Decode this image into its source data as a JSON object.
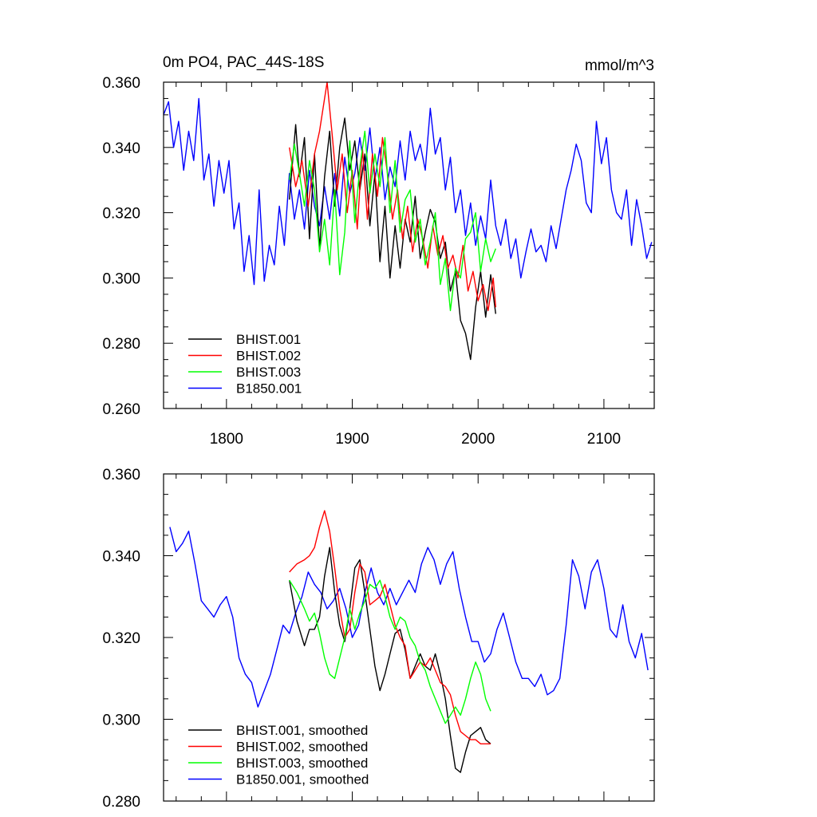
{
  "chart_data": [
    {
      "type": "line",
      "title_left": "0m PO4, PAC_44S-18S",
      "title_right": "mmol/m^3",
      "xlim": [
        1750,
        2140
      ],
      "ylim": [
        0.26,
        0.36
      ],
      "xticks": [
        1800,
        1900,
        2000,
        2100
      ],
      "xtick_labels": [
        "1800",
        "1900",
        "2000",
        "2100"
      ],
      "yticks": [
        0.26,
        0.28,
        0.3,
        0.32,
        0.34,
        0.36
      ],
      "ytick_labels": [
        "0.260",
        "0.280",
        "0.300",
        "0.320",
        "0.340",
        "0.360"
      ],
      "legend_position": "bottom-left",
      "series": [
        {
          "name": "BHIST.001",
          "color": "#000000",
          "x": [
            1850,
            1855,
            1858,
            1862,
            1866,
            1870,
            1874,
            1878,
            1882,
            1886,
            1890,
            1894,
            1898,
            1902,
            1906,
            1910,
            1914,
            1918,
            1922,
            1926,
            1930,
            1934,
            1938,
            1942,
            1946,
            1950,
            1954,
            1958,
            1962,
            1966,
            1970,
            1974,
            1978,
            1982,
            1986,
            1990,
            1994,
            1998,
            2002,
            2006,
            2010,
            2014
          ],
          "values": [
            0.324,
            0.347,
            0.331,
            0.343,
            0.312,
            0.338,
            0.309,
            0.331,
            0.345,
            0.322,
            0.34,
            0.349,
            0.333,
            0.342,
            0.327,
            0.338,
            0.316,
            0.332,
            0.305,
            0.322,
            0.3,
            0.316,
            0.303,
            0.318,
            0.311,
            0.325,
            0.306,
            0.314,
            0.321,
            0.317,
            0.306,
            0.311,
            0.296,
            0.302,
            0.287,
            0.283,
            0.275,
            0.291,
            0.302,
            0.288,
            0.301,
            0.289
          ]
        },
        {
          "name": "BHIST.002",
          "color": "#ff0000",
          "x": [
            1850,
            1855,
            1860,
            1865,
            1870,
            1874,
            1878,
            1880,
            1884,
            1888,
            1892,
            1896,
            1900,
            1904,
            1908,
            1912,
            1916,
            1920,
            1924,
            1928,
            1932,
            1936,
            1940,
            1944,
            1948,
            1952,
            1956,
            1960,
            1964,
            1968,
            1972,
            1976,
            1980,
            1984,
            1988,
            1992,
            1996,
            2000,
            2004,
            2008,
            2012,
            2014
          ],
          "values": [
            0.34,
            0.328,
            0.336,
            0.322,
            0.338,
            0.345,
            0.355,
            0.36,
            0.344,
            0.327,
            0.338,
            0.32,
            0.333,
            0.315,
            0.34,
            0.318,
            0.338,
            0.325,
            0.343,
            0.332,
            0.318,
            0.327,
            0.312,
            0.322,
            0.308,
            0.318,
            0.312,
            0.303,
            0.316,
            0.307,
            0.313,
            0.303,
            0.307,
            0.3,
            0.31,
            0.296,
            0.302,
            0.293,
            0.298,
            0.29,
            0.3,
            0.291
          ]
        },
        {
          "name": "BHIST.003",
          "color": "#00ff00",
          "x": [
            1850,
            1854,
            1858,
            1862,
            1866,
            1870,
            1874,
            1878,
            1882,
            1886,
            1890,
            1894,
            1898,
            1902,
            1906,
            1910,
            1914,
            1918,
            1922,
            1926,
            1930,
            1934,
            1938,
            1942,
            1946,
            1950,
            1954,
            1958,
            1962,
            1966,
            1970,
            1974,
            1978,
            1982,
            1986,
            1990,
            1994,
            1998,
            2002,
            2006,
            2010,
            2014
          ],
          "values": [
            0.33,
            0.341,
            0.332,
            0.322,
            0.336,
            0.327,
            0.308,
            0.318,
            0.304,
            0.327,
            0.301,
            0.314,
            0.342,
            0.317,
            0.334,
            0.345,
            0.326,
            0.338,
            0.328,
            0.343,
            0.32,
            0.336,
            0.314,
            0.324,
            0.327,
            0.311,
            0.318,
            0.304,
            0.311,
            0.32,
            0.298,
            0.306,
            0.29,
            0.303,
            0.3,
            0.312,
            0.314,
            0.32,
            0.302,
            0.312,
            0.305,
            0.309
          ]
        },
        {
          "name": "B1850.001",
          "color": "#0000ff",
          "x": [
            1750,
            1754,
            1758,
            1762,
            1766,
            1770,
            1774,
            1778,
            1782,
            1786,
            1790,
            1794,
            1798,
            1802,
            1806,
            1810,
            1814,
            1818,
            1822,
            1826,
            1830,
            1834,
            1838,
            1842,
            1846,
            1850,
            1854,
            1858,
            1862,
            1866,
            1870,
            1874,
            1878,
            1882,
            1886,
            1890,
            1894,
            1898,
            1902,
            1906,
            1910,
            1914,
            1918,
            1922,
            1926,
            1930,
            1934,
            1938,
            1942,
            1946,
            1950,
            1954,
            1958,
            1962,
            1966,
            1970,
            1974,
            1978,
            1982,
            1986,
            1990,
            1994,
            1998,
            2002,
            2006,
            2010,
            2014,
            2018,
            2022,
            2026,
            2030,
            2034,
            2038,
            2042,
            2046,
            2050,
            2054,
            2058,
            2062,
            2066,
            2070,
            2074,
            2078,
            2082,
            2086,
            2090,
            2094,
            2098,
            2102,
            2106,
            2110,
            2114,
            2118,
            2122,
            2126,
            2130,
            2134,
            2138
          ],
          "values": [
            0.35,
            0.354,
            0.34,
            0.348,
            0.333,
            0.345,
            0.336,
            0.355,
            0.33,
            0.338,
            0.322,
            0.336,
            0.326,
            0.336,
            0.315,
            0.323,
            0.302,
            0.313,
            0.298,
            0.327,
            0.299,
            0.31,
            0.304,
            0.322,
            0.31,
            0.332,
            0.318,
            0.327,
            0.315,
            0.333,
            0.322,
            0.316,
            0.328,
            0.318,
            0.332,
            0.319,
            0.337,
            0.326,
            0.332,
            0.343,
            0.333,
            0.346,
            0.33,
            0.34,
            0.324,
            0.334,
            0.328,
            0.342,
            0.33,
            0.345,
            0.336,
            0.341,
            0.333,
            0.352,
            0.338,
            0.343,
            0.327,
            0.337,
            0.32,
            0.327,
            0.313,
            0.323,
            0.31,
            0.319,
            0.312,
            0.33,
            0.316,
            0.31,
            0.318,
            0.306,
            0.312,
            0.3,
            0.308,
            0.315,
            0.308,
            0.31,
            0.305,
            0.316,
            0.309,
            0.318,
            0.327,
            0.333,
            0.341,
            0.336,
            0.323,
            0.32,
            0.348,
            0.335,
            0.343,
            0.327,
            0.32,
            0.318,
            0.327,
            0.31,
            0.324,
            0.316,
            0.306,
            0.311
          ]
        }
      ]
    },
    {
      "type": "line",
      "xlim": [
        1750,
        2140
      ],
      "ylim": [
        0.28,
        0.36
      ],
      "xticks": [
        1800,
        1900,
        2000,
        2100
      ],
      "yticks": [
        0.28,
        0.3,
        0.32,
        0.34,
        0.36
      ],
      "ytick_labels": [
        "0.280",
        "0.300",
        "0.320",
        "0.340",
        "0.360"
      ],
      "legend_position": "bottom-left",
      "series": [
        {
          "name": "BHIST.001, smoothed",
          "color": "#000000",
          "x": [
            1850,
            1856,
            1862,
            1866,
            1870,
            1874,
            1878,
            1882,
            1886,
            1890,
            1894,
            1898,
            1902,
            1906,
            1910,
            1914,
            1918,
            1922,
            1926,
            1930,
            1934,
            1938,
            1942,
            1946,
            1950,
            1954,
            1958,
            1962,
            1966,
            1970,
            1974,
            1978,
            1982,
            1986,
            1990,
            1994,
            1998,
            2002,
            2006,
            2010
          ],
          "values": [
            0.334,
            0.324,
            0.318,
            0.322,
            0.322,
            0.325,
            0.335,
            0.342,
            0.331,
            0.323,
            0.319,
            0.327,
            0.337,
            0.339,
            0.331,
            0.322,
            0.313,
            0.307,
            0.311,
            0.316,
            0.321,
            0.322,
            0.317,
            0.31,
            0.313,
            0.316,
            0.313,
            0.312,
            0.316,
            0.311,
            0.305,
            0.296,
            0.288,
            0.287,
            0.292,
            0.296,
            0.297,
            0.298,
            0.295,
            0.294
          ]
        },
        {
          "name": "BHIST.002, smoothed",
          "color": "#ff0000",
          "x": [
            1850,
            1856,
            1862,
            1866,
            1870,
            1874,
            1878,
            1882,
            1886,
            1890,
            1894,
            1898,
            1902,
            1906,
            1910,
            1914,
            1918,
            1922,
            1926,
            1930,
            1934,
            1938,
            1942,
            1946,
            1950,
            1954,
            1958,
            1962,
            1966,
            1970,
            1974,
            1978,
            1982,
            1986,
            1990,
            1994,
            1998,
            2002,
            2006,
            2010
          ],
          "values": [
            0.336,
            0.338,
            0.339,
            0.34,
            0.342,
            0.347,
            0.351,
            0.346,
            0.337,
            0.327,
            0.32,
            0.322,
            0.331,
            0.338,
            0.336,
            0.328,
            0.329,
            0.33,
            0.333,
            0.328,
            0.323,
            0.32,
            0.318,
            0.31,
            0.312,
            0.314,
            0.313,
            0.315,
            0.312,
            0.309,
            0.308,
            0.306,
            0.301,
            0.297,
            0.296,
            0.295,
            0.295,
            0.294,
            0.294,
            0.294
          ]
        },
        {
          "name": "BHIST.003, smoothed",
          "color": "#00ff00",
          "x": [
            1850,
            1856,
            1862,
            1866,
            1870,
            1874,
            1878,
            1882,
            1886,
            1890,
            1894,
            1898,
            1902,
            1906,
            1910,
            1914,
            1918,
            1922,
            1926,
            1930,
            1934,
            1938,
            1942,
            1946,
            1950,
            1954,
            1958,
            1962,
            1966,
            1970,
            1974,
            1978,
            1982,
            1986,
            1990,
            1994,
            1998,
            2002,
            2006,
            2010
          ],
          "values": [
            0.334,
            0.331,
            0.327,
            0.324,
            0.326,
            0.321,
            0.315,
            0.311,
            0.31,
            0.315,
            0.32,
            0.327,
            0.322,
            0.326,
            0.329,
            0.333,
            0.332,
            0.334,
            0.33,
            0.325,
            0.322,
            0.325,
            0.324,
            0.32,
            0.318,
            0.314,
            0.312,
            0.308,
            0.305,
            0.302,
            0.299,
            0.301,
            0.303,
            0.301,
            0.305,
            0.31,
            0.314,
            0.311,
            0.305,
            0.302
          ]
        },
        {
          "name": "B1850.001, smoothed",
          "color": "#0000ff",
          "x": [
            1755,
            1760,
            1765,
            1770,
            1775,
            1780,
            1785,
            1790,
            1795,
            1800,
            1805,
            1810,
            1815,
            1820,
            1825,
            1830,
            1835,
            1840,
            1845,
            1850,
            1855,
            1860,
            1865,
            1870,
            1875,
            1880,
            1885,
            1890,
            1895,
            1900,
            1905,
            1910,
            1915,
            1920,
            1925,
            1930,
            1935,
            1940,
            1945,
            1950,
            1955,
            1960,
            1965,
            1970,
            1975,
            1980,
            1985,
            1990,
            1995,
            2000,
            2005,
            2010,
            2015,
            2020,
            2025,
            2030,
            2035,
            2040,
            2045,
            2050,
            2055,
            2060,
            2065,
            2070,
            2075,
            2080,
            2085,
            2090,
            2095,
            2100,
            2105,
            2110,
            2115,
            2120,
            2125,
            2130,
            2135
          ],
          "values": [
            0.347,
            0.341,
            0.343,
            0.346,
            0.338,
            0.329,
            0.327,
            0.325,
            0.328,
            0.33,
            0.325,
            0.315,
            0.311,
            0.309,
            0.303,
            0.307,
            0.311,
            0.317,
            0.323,
            0.321,
            0.326,
            0.33,
            0.336,
            0.333,
            0.331,
            0.327,
            0.329,
            0.332,
            0.327,
            0.32,
            0.323,
            0.331,
            0.337,
            0.331,
            0.328,
            0.332,
            0.328,
            0.331,
            0.334,
            0.331,
            0.338,
            0.342,
            0.339,
            0.333,
            0.338,
            0.341,
            0.332,
            0.325,
            0.319,
            0.319,
            0.314,
            0.316,
            0.322,
            0.326,
            0.32,
            0.314,
            0.31,
            0.31,
            0.308,
            0.311,
            0.306,
            0.307,
            0.31,
            0.323,
            0.339,
            0.335,
            0.327,
            0.336,
            0.339,
            0.332,
            0.322,
            0.32,
            0.328,
            0.319,
            0.315,
            0.321,
            0.312
          ]
        }
      ]
    }
  ]
}
